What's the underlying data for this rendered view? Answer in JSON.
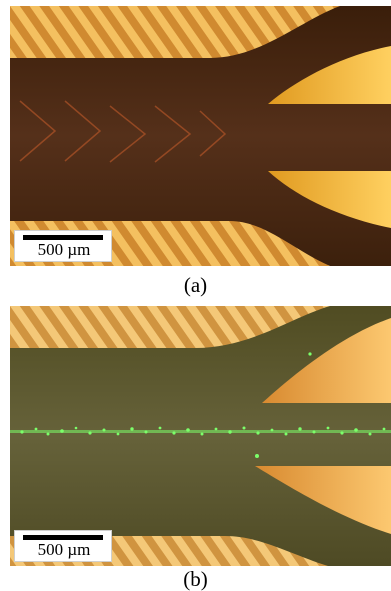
{
  "figure": {
    "panels": [
      {
        "id": "a",
        "caption": "(a)",
        "scale_bar_label": "500 µm",
        "colors": {
          "channel": "#4a2a10",
          "stripe_light": "#f4c060",
          "stripe_dark": "#d08a30",
          "electrode": "#f6b232"
        }
      },
      {
        "id": "b",
        "caption": "(b)",
        "scale_bar_label": "500 µm",
        "colors": {
          "channel": "#5e5a2c",
          "stripe_light": "#f4c878",
          "stripe_dark": "#d09440",
          "electrode": "#f2ac3a",
          "particles": "#7cff6a"
        }
      }
    ]
  }
}
